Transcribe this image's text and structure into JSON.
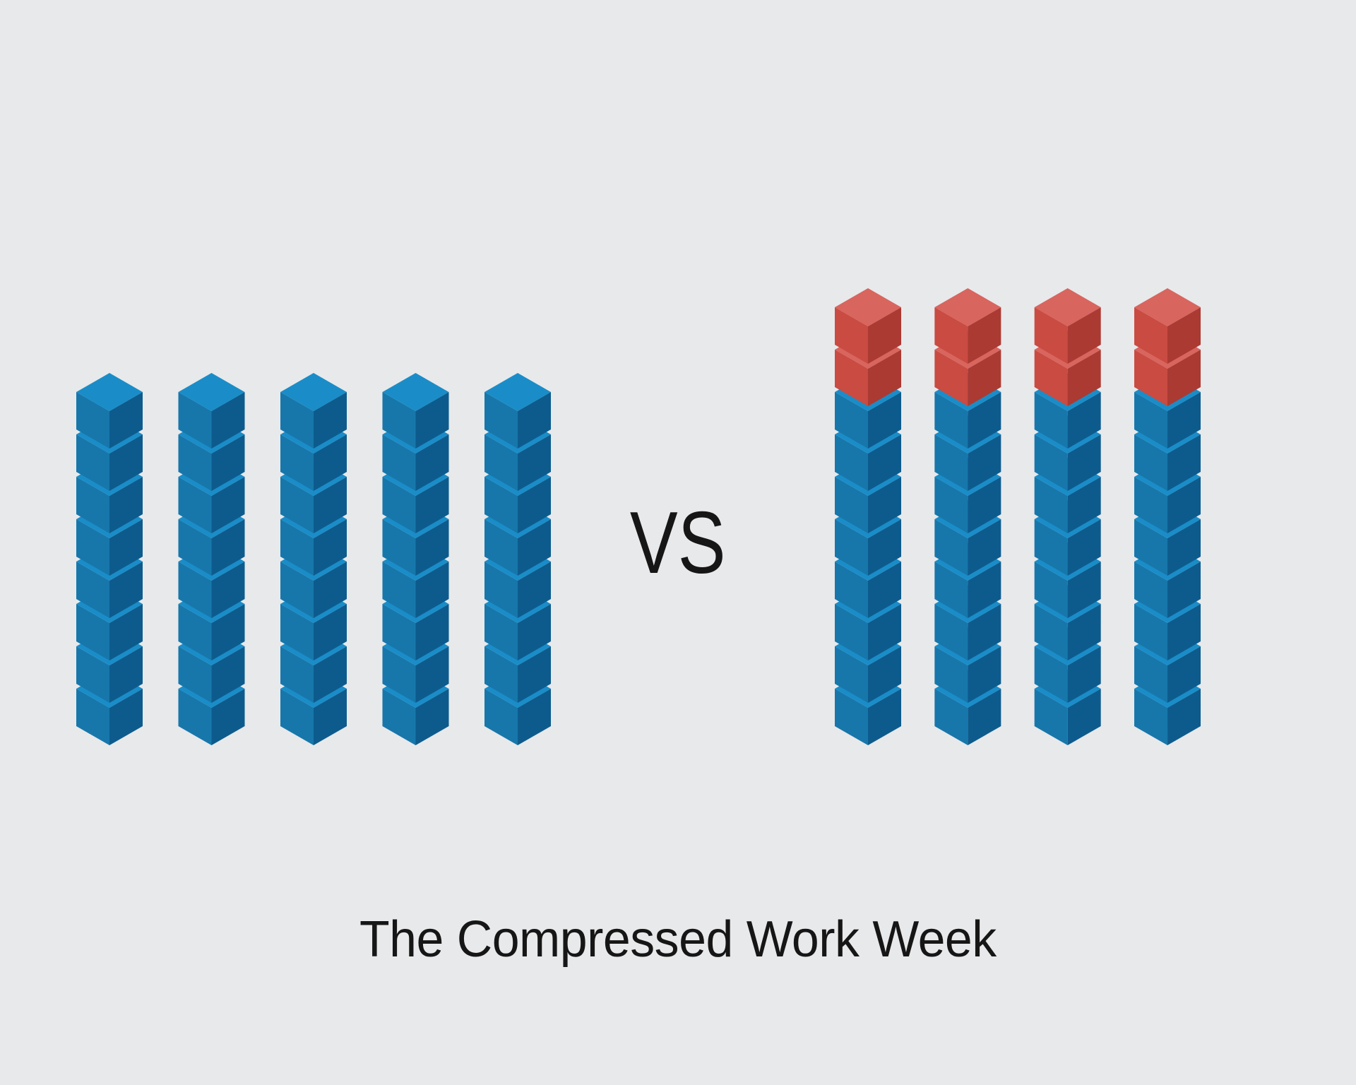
{
  "labels": {
    "vs": "VS",
    "title": "The Compressed Work Week"
  },
  "colors": {
    "background": "#e8e9eb",
    "text": "#161616",
    "blue": {
      "top": "#1a8dc8",
      "left": "#1777ab",
      "right": "#0d5b8d"
    },
    "red": {
      "top": "#d8655e",
      "left": "#c94b42",
      "right": "#ab3a33"
    }
  },
  "chart_data": {
    "type": "isometric-stacked-cube-columns",
    "title": "The Compressed Work Week",
    "vs_label": "VS",
    "legend_position": "none",
    "groups": [
      {
        "name": "left-group",
        "columns": 5,
        "cubes_per_column": 8,
        "stack": [
          {
            "color": "blue",
            "count": 8
          }
        ]
      },
      {
        "name": "right-group",
        "columns": 4,
        "cubes_per_column": 10,
        "stack": [
          {
            "color": "red",
            "count": 2
          },
          {
            "color": "blue",
            "count": 8
          }
        ]
      }
    ]
  }
}
